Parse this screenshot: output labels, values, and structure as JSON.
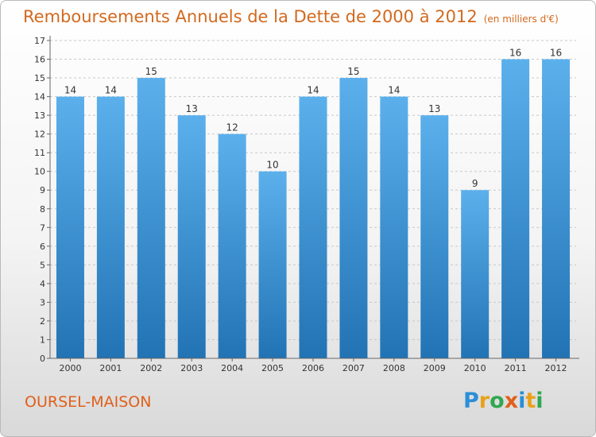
{
  "header": {
    "title": "Remboursements Annuels de la Dette de 2000 à 2012",
    "unit": "(en milliers d'€)"
  },
  "footer": {
    "place": "OURSEL-MAISON",
    "logo_letters": [
      {
        "ch": "P",
        "color": "#2a8fd6"
      },
      {
        "ch": "r",
        "color": "#e8a21a"
      },
      {
        "ch": "o",
        "color": "#2fa84f"
      },
      {
        "ch": "x",
        "color": "#e0601a"
      },
      {
        "ch": "i",
        "color": "#2a8fd6"
      },
      {
        "ch": "t",
        "color": "#e8a21a"
      },
      {
        "ch": "i",
        "color": "#2fa84f"
      }
    ]
  },
  "chart_data": {
    "type": "bar",
    "title": "Remboursements Annuels de la Dette de 2000 à 2012",
    "subtitle": "(en milliers d'€)",
    "categories": [
      "2000",
      "2001",
      "2002",
      "2003",
      "2004",
      "2005",
      "2006",
      "2007",
      "2008",
      "2009",
      "2010",
      "2011",
      "2012"
    ],
    "values": [
      14,
      14,
      15,
      13,
      12,
      10,
      14,
      15,
      14,
      13,
      9,
      16,
      16
    ],
    "ylim": [
      0,
      17
    ],
    "yticks": [
      0,
      1,
      2,
      3,
      4,
      5,
      6,
      7,
      8,
      9,
      10,
      11,
      12,
      13,
      14,
      15,
      16,
      17
    ],
    "grid": true,
    "colors": {
      "bar_top": "#5bb0ec",
      "bar_bottom": "#2273b4",
      "grid": "#c8c8c8",
      "axis": "#666666",
      "label": "#333333"
    }
  }
}
